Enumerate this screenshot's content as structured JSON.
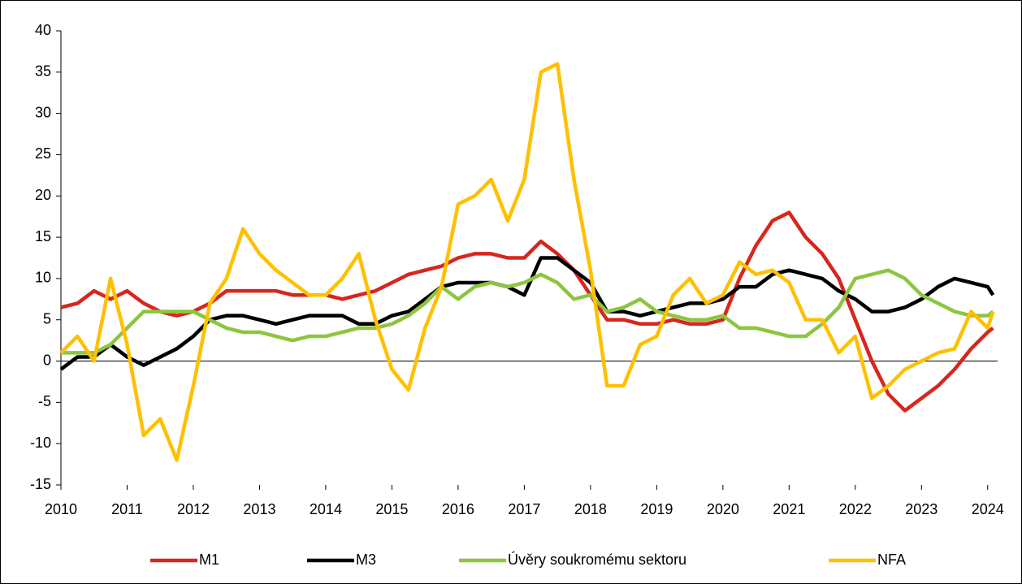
{
  "chart_data": {
    "type": "line",
    "x": [
      2010,
      2010.25,
      2010.5,
      2010.75,
      2011,
      2011.25,
      2011.5,
      2011.75,
      2012,
      2012.25,
      2012.5,
      2012.75,
      2013,
      2013.25,
      2013.5,
      2013.75,
      2014,
      2014.25,
      2014.5,
      2014.75,
      2015,
      2015.25,
      2015.5,
      2015.75,
      2016,
      2016.25,
      2016.5,
      2016.75,
      2017,
      2017.25,
      2017.5,
      2017.75,
      2018,
      2018.25,
      2018.5,
      2018.75,
      2019,
      2019.25,
      2019.5,
      2019.75,
      2020,
      2020.25,
      2020.5,
      2020.75,
      2021,
      2021.25,
      2021.5,
      2021.75,
      2022,
      2022.25,
      2022.5,
      2022.75,
      2023,
      2023.25,
      2023.5,
      2023.75,
      2024,
      2024.08
    ],
    "series": [
      {
        "name": "M1",
        "color": "#d7261e",
        "values": [
          6.5,
          7,
          8.5,
          7.5,
          8.5,
          7,
          6,
          5.5,
          6,
          7,
          8.5,
          8.5,
          8.5,
          8.5,
          8,
          8,
          8,
          7.5,
          8,
          8.5,
          9.5,
          10.5,
          11,
          11.5,
          12.5,
          13,
          13,
          12.5,
          12.5,
          14.5,
          13,
          11,
          8,
          5,
          5,
          4.5,
          4.5,
          5,
          4.5,
          4.5,
          5,
          10,
          14,
          17,
          18,
          15,
          13,
          10,
          5,
          0,
          -4,
          -6,
          -4.5,
          -3,
          -1,
          1.5,
          3.5,
          4
        ]
      },
      {
        "name": "M3",
        "color": "#000000",
        "values": [
          -1,
          0.5,
          0.5,
          2,
          0.5,
          -0.5,
          0.5,
          1.5,
          3,
          5,
          5.5,
          5.5,
          5,
          4.5,
          5,
          5.5,
          5.5,
          5.5,
          4.5,
          4.5,
          5.5,
          6,
          7.5,
          9,
          9.5,
          9.5,
          9.5,
          9,
          8,
          12.5,
          12.5,
          11,
          9.5,
          6,
          6,
          5.5,
          6,
          6.5,
          7,
          7,
          7.5,
          9,
          9,
          10.5,
          11,
          10.5,
          10,
          8.5,
          7.5,
          6,
          6,
          6.5,
          7.5,
          9,
          10,
          9.5,
          9,
          8
        ]
      },
      {
        "name": "Úvěry soukromému sektoru",
        "color": "#8cc63f",
        "values": [
          1,
          1,
          1,
          2,
          4,
          6,
          6,
          6,
          6,
          5,
          4,
          3.5,
          3.5,
          3,
          2.5,
          3,
          3,
          3.5,
          4,
          4,
          4.5,
          5.5,
          7,
          9,
          7.5,
          9,
          9.5,
          9,
          9.5,
          10.5,
          9.5,
          7.5,
          8,
          6,
          6.5,
          7.5,
          6,
          5.5,
          5,
          5,
          5.5,
          4,
          4,
          3.5,
          3,
          3,
          4.5,
          6.5,
          10,
          10.5,
          11,
          10,
          8,
          7,
          6,
          5.5,
          5.5,
          6
        ]
      },
      {
        "name": "NFA",
        "color": "#ffc000",
        "values": [
          1,
          3,
          0,
          10,
          2,
          -9,
          -7,
          -12,
          -3,
          7,
          10,
          16,
          13,
          11,
          9.5,
          8,
          8,
          10,
          13,
          5,
          -1,
          -3.5,
          4,
          9,
          19,
          20,
          22,
          17,
          22,
          35,
          36,
          22,
          11,
          -3,
          -3,
          2,
          3,
          8,
          10,
          7,
          8,
          12,
          10.5,
          11,
          9.5,
          5,
          5,
          1,
          3,
          -4.5,
          -3,
          -1,
          0,
          1,
          1.5,
          6,
          4,
          6
        ]
      }
    ],
    "xlim": [
      2010,
      2024.15
    ],
    "xticks": [
      2010,
      2011,
      2012,
      2013,
      2014,
      2015,
      2016,
      2017,
      2018,
      2019,
      2020,
      2021,
      2022,
      2023,
      2024
    ],
    "ylim": [
      -15,
      40
    ],
    "yticks": [
      -15,
      -10,
      -5,
      0,
      5,
      10,
      15,
      20,
      25,
      30,
      35,
      40
    ],
    "legend": "bottom"
  }
}
